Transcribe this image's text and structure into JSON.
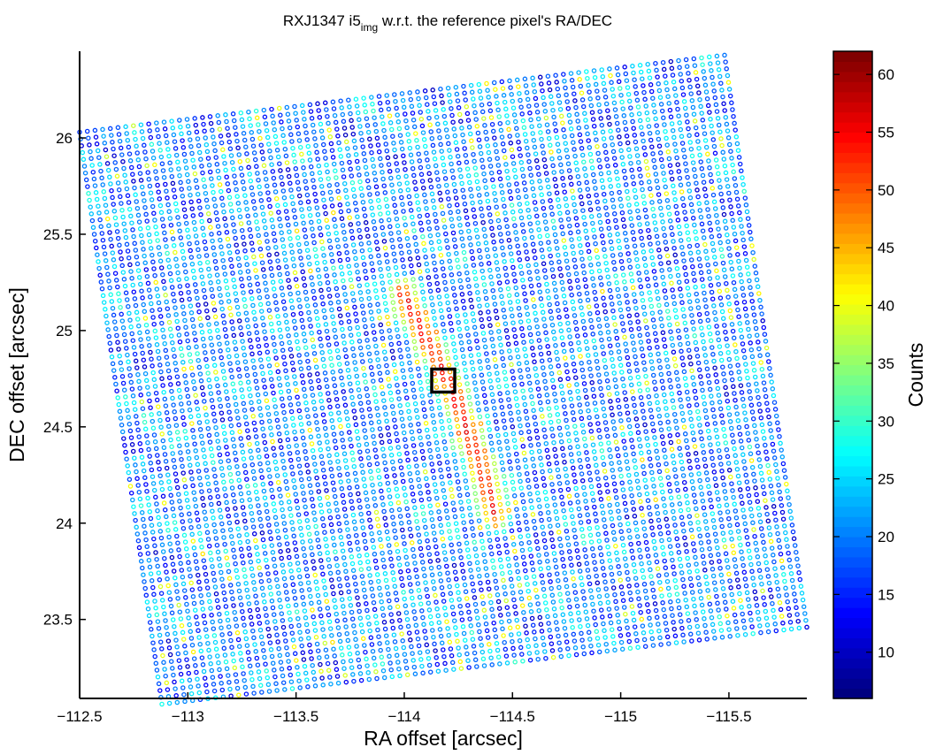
{
  "chart_data": {
    "type": "scatter",
    "title_main": "RXJ1347 i5",
    "title_sub": "img",
    "title_rest": " w.r.t. the reference pixel's RA/DEC",
    "xlabel": "RA offset [arcsec]",
    "ylabel": "DEC offset [arcsec]",
    "xlim": [
      -112.5,
      -115.86
    ],
    "ylim": [
      23.09,
      26.45
    ],
    "x_reversed": true,
    "xticks": [
      -112.5,
      -113,
      -113.5,
      -114,
      -114.5,
      -115,
      -115.5
    ],
    "xtick_labels": [
      "−112.5",
      "−113",
      "−113.5",
      "−114",
      "−114.5",
      "−115",
      "−115.5"
    ],
    "yticks": [
      23.5,
      24,
      24.5,
      25,
      25.5,
      26
    ],
    "ytick_labels": [
      "23.5",
      "24",
      "24.5",
      "25",
      "25.5",
      "26"
    ],
    "footprint_corners": [
      {
        "x": -112.5,
        "y": 26.03
      },
      {
        "x": -115.48,
        "y": 26.43
      },
      {
        "x": -115.85,
        "y": 23.45
      },
      {
        "x": -112.88,
        "y": 23.06
      }
    ],
    "marker": "open circle",
    "grid": false,
    "background_counts": [
      10,
      30
    ],
    "source": {
      "description": "elongated high-count region",
      "peak_counts": 57,
      "spine_points": [
        {
          "x": -113.99,
          "y": 25.2
        },
        {
          "x": -114.1,
          "y": 24.95
        },
        {
          "x": -114.22,
          "y": 24.7
        },
        {
          "x": -114.32,
          "y": 24.4
        },
        {
          "x": -114.42,
          "y": 24.05
        }
      ]
    },
    "reference_box": {
      "x": -114.18,
      "y": 24.74
    },
    "colorbar": {
      "label": "Counts",
      "range": [
        6,
        62
      ],
      "ticks": [
        10,
        15,
        20,
        25,
        30,
        35,
        40,
        45,
        50,
        55,
        60
      ],
      "colormap": "jet",
      "levels": 64
    }
  }
}
